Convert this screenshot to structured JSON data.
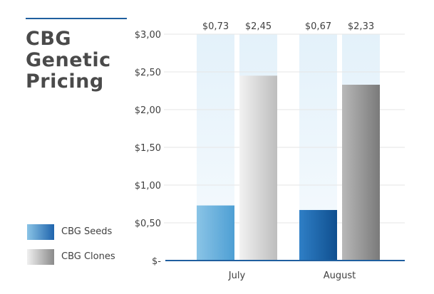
{
  "title_lines": [
    "CBG",
    "Genetic",
    "Pricing"
  ],
  "chart_data": {
    "type": "bar",
    "title": "CBG Genetic Pricing",
    "categories": [
      "July",
      "August"
    ],
    "series": [
      {
        "name": "CBG Seeds",
        "values": [
          0.73,
          0.67
        ],
        "labels": [
          "$0,73",
          "$0,67"
        ]
      },
      {
        "name": "CBG Clones",
        "values": [
          2.45,
          2.33
        ],
        "labels": [
          "$2,45",
          "$2,33"
        ]
      }
    ],
    "ylim": [
      0,
      3
    ],
    "yticks": [
      0,
      0.5,
      1,
      1.5,
      2,
      2.5,
      3
    ],
    "ytick_labels": [
      "$-",
      "$0,50",
      "$1,00",
      "$1,50",
      "$2,00",
      "$2,50",
      "$3,00"
    ],
    "legend_position": "bottom-left",
    "grid": true,
    "colors": {
      "seeds_july": [
        "#8ac4e6",
        "#4e9fd4"
      ],
      "seeds_august": [
        "#2f7fc6",
        "#0f4f8f"
      ],
      "clones_july": [
        "#f2f2f2",
        "#bdbdbd"
      ],
      "clones_august": [
        "#b8b8b8",
        "#7a7a7a"
      ],
      "background_column": "#e4f1fa",
      "axis": "#1f5f9f"
    }
  }
}
